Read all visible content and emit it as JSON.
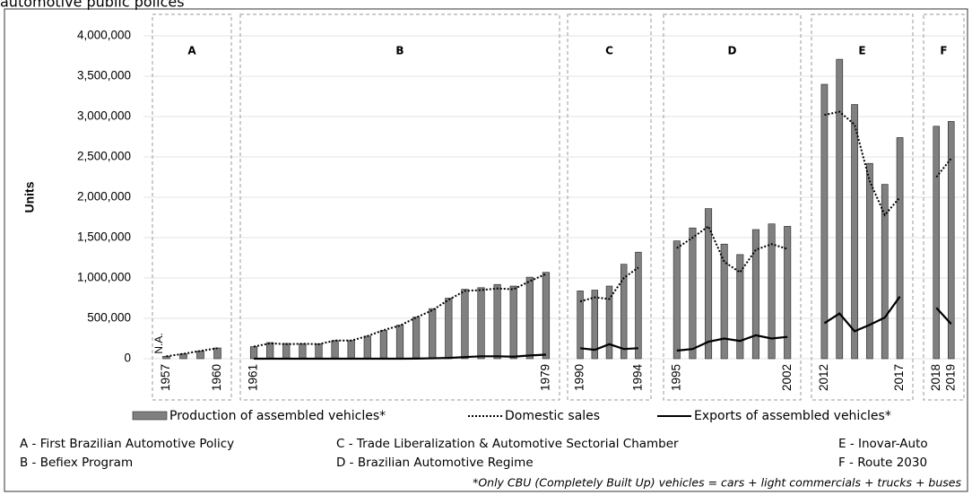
{
  "chart_data": {
    "type": "bar",
    "title": "automotive public polices",
    "ylabel": "Units",
    "annotation": "N.A.",
    "footnote": "*Only CBU (Completely Built Up) vehicles = cars + light commercials + trucks + buses",
    "ylim": [
      0,
      4000000
    ],
    "yticks": [
      0,
      {
        "value": 500000,
        "label": "500,000"
      },
      {
        "value": 1000000,
        "label": "1,000,000"
      },
      {
        "value": 1500000,
        "label": "1,500,000"
      },
      {
        "value": 2000000,
        "label": "2,000,000"
      },
      {
        "value": 2500000,
        "label": "2,500,000"
      },
      {
        "value": 3000000,
        "label": "3,000,000"
      },
      {
        "value": 3500000,
        "label": "3,500,000"
      },
      {
        "value": 4000000,
        "label": "4,000,000"
      }
    ],
    "grid": true,
    "series": [
      {
        "name": "Production of assembled vehicles*",
        "color": "#808080",
        "kind": "bar",
        "line_style": "solid"
      },
      {
        "name": "Domestic sales",
        "color": "#000000",
        "kind": "line",
        "line_style": "dotted"
      },
      {
        "name": "Exports of assembled vehicles*",
        "color": "#000000",
        "kind": "line",
        "line_style": "solid"
      }
    ],
    "panels": [
      {
        "letter": "A",
        "description": "A - First Brazilian Automotive Policy",
        "categories": [
          "1957",
          null,
          null,
          "1960"
        ],
        "values": [
          [
            30000,
            61000,
            96000,
            133000
          ],
          [
            30000,
            60000,
            96000,
            130000
          ],
          [
            null,
            null,
            null,
            null
          ]
        ]
      },
      {
        "letter": "B",
        "description": "B - Befiex Program",
        "categories": [
          "1961",
          null,
          null,
          null,
          null,
          null,
          null,
          null,
          null,
          null,
          null,
          null,
          null,
          null,
          null,
          null,
          null,
          null,
          "1979"
        ],
        "values": [
          [
            150000,
            200000,
            190000,
            185000,
            185000,
            225000,
            225000,
            280000,
            350000,
            415000,
            515000,
            620000,
            750000,
            860000,
            880000,
            920000,
            900000,
            1010000,
            1070000
          ],
          [
            150000,
            190000,
            180000,
            185000,
            180000,
            225000,
            225000,
            280000,
            355000,
            410000,
            510000,
            600000,
            730000,
            840000,
            850000,
            870000,
            860000,
            960000,
            1050000
          ],
          [
            0,
            0,
            0,
            0,
            0,
            0,
            0,
            0,
            0,
            0,
            1000,
            5000,
            10000,
            20000,
            30000,
            30000,
            25000,
            40000,
            50000
          ]
        ]
      },
      {
        "letter": "C",
        "description": "C - Trade Liberalization & Automotive Sectorial Chamber",
        "categories": [
          "1990",
          null,
          null,
          null,
          "1994"
        ],
        "values": [
          [
            840000,
            850000,
            900000,
            1170000,
            1320000
          ],
          [
            710000,
            760000,
            740000,
            1000000,
            1130000
          ],
          [
            130000,
            110000,
            180000,
            120000,
            130000
          ]
        ]
      },
      {
        "letter": "D",
        "description": "D - Brazilian Automotive Regime",
        "categories": [
          "1995",
          null,
          null,
          null,
          null,
          null,
          null,
          "2002"
        ],
        "values": [
          [
            1460000,
            1620000,
            1860000,
            1420000,
            1290000,
            1600000,
            1670000,
            1640000
          ],
          [
            1370000,
            1500000,
            1640000,
            1200000,
            1070000,
            1350000,
            1420000,
            1360000
          ],
          [
            100000,
            120000,
            210000,
            250000,
            220000,
            290000,
            250000,
            270000
          ]
        ]
      },
      {
        "letter": "E",
        "description": "E - Inovar-Auto",
        "categories": [
          "2012",
          null,
          null,
          null,
          null,
          "2017"
        ],
        "values": [
          [
            3400000,
            3710000,
            3150000,
            2420000,
            2160000,
            2740000
          ],
          [
            3020000,
            3060000,
            2900000,
            2200000,
            1780000,
            2000000
          ],
          [
            440000,
            560000,
            340000,
            420000,
            510000,
            770000
          ]
        ]
      },
      {
        "letter": "F",
        "description": "F - Route 2030",
        "categories": [
          "2018",
          "2019"
        ],
        "values": [
          [
            2880000,
            2940000
          ],
          [
            2250000,
            2480000
          ],
          [
            630000,
            430000
          ]
        ]
      }
    ]
  }
}
